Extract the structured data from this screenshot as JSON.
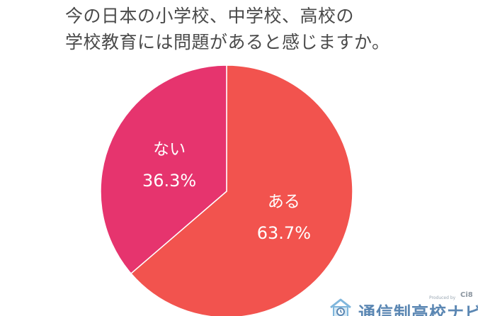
{
  "title_lines": [
    "今の日本の小学校、中学校、高校の",
    "学校教育には問題があると感じますか。"
  ],
  "chart_data": {
    "type": "pie",
    "title": "今の日本の小学校、中学校、高校の学校教育には問題があると感じますか。",
    "slices": [
      {
        "label": "ある",
        "value": 63.7,
        "value_label": "63.7%",
        "color": "#f2534e"
      },
      {
        "label": "ない",
        "value": 36.3,
        "value_label": "36.3%",
        "color": "#e6346e"
      }
    ],
    "start": "12 o'clock",
    "direction": "clockwise",
    "legend": "none",
    "labels": "inside slices"
  },
  "logo": {
    "produced_by": "Produced by",
    "company": "Ci8",
    "brand": "通信制高校ナビ"
  }
}
